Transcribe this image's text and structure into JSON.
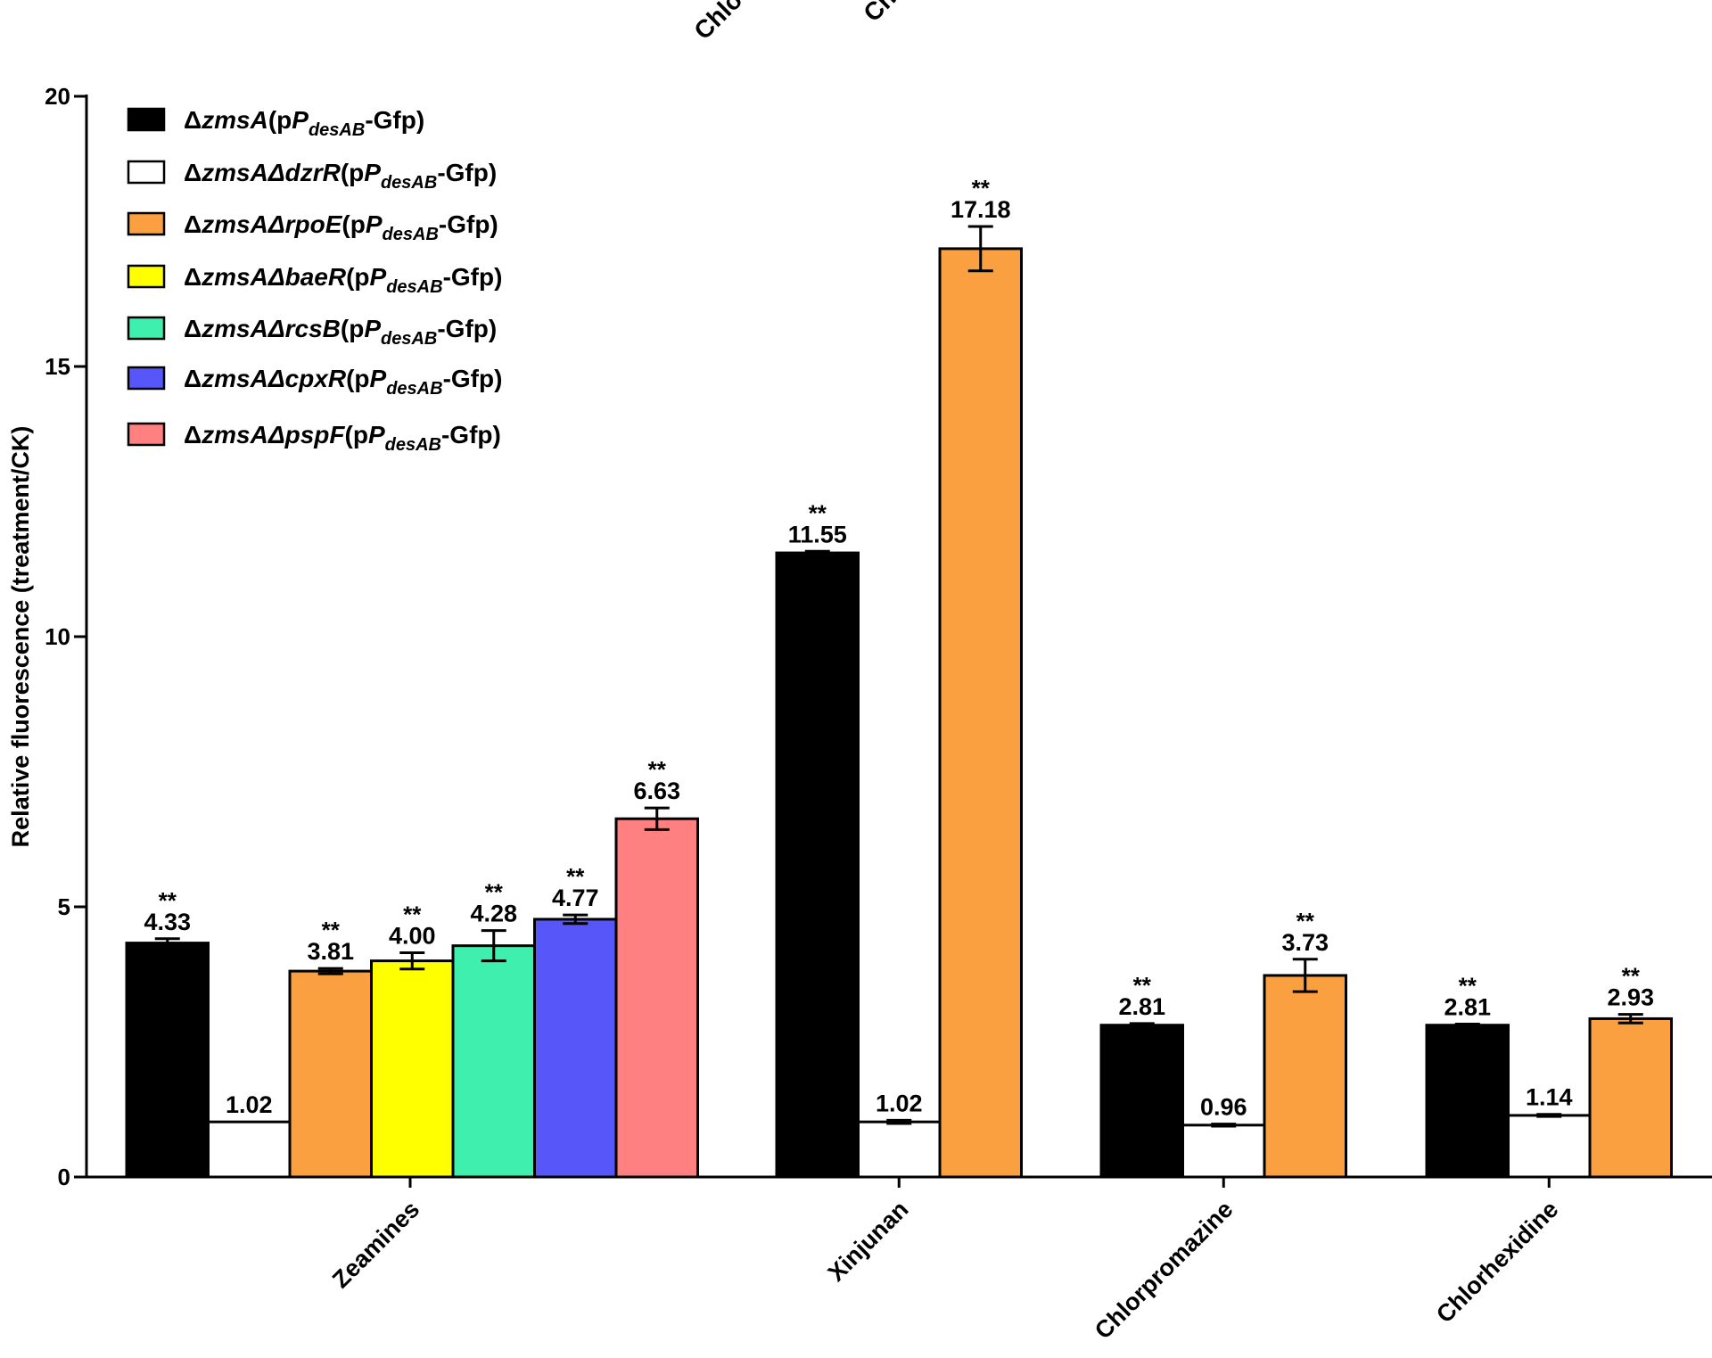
{
  "chart_data": {
    "type": "bar",
    "title": "",
    "xlabel": "",
    "ylabel": "Relative fluorescence (treatment/CK)",
    "ylim": [
      0,
      20
    ],
    "yticks": [
      "0",
      "5",
      "10",
      "15",
      "20"
    ],
    "grid": false,
    "legend_position": "top-left",
    "top_cropped_labels": [
      "Chlo",
      "Ch"
    ],
    "series": [
      {
        "name_prefix": "Δ",
        "name_gene": "zmsA",
        "name_suffix": "(p",
        "name_promoter": "P",
        "name_subscript": "desAB",
        "name_tail": "-Gfp)",
        "color": "#000000"
      },
      {
        "name_prefix": "Δ",
        "name_gene": "zmsAΔdzrR",
        "name_suffix": "(p",
        "name_promoter": "P",
        "name_subscript": "desAB",
        "name_tail": "-Gfp)",
        "color": "#ffffff"
      },
      {
        "name_prefix": "Δ",
        "name_gene": "zmsAΔrpoE",
        "name_suffix": "(p",
        "name_promoter": "P",
        "name_subscript": "desAB",
        "name_tail": "-Gfp)",
        "color": "#fba040"
      },
      {
        "name_prefix": "Δ",
        "name_gene": "zmsAΔbaeR",
        "name_suffix": "(p",
        "name_promoter": "P",
        "name_subscript": "desAB",
        "name_tail": "-Gfp)",
        "color": "#ffff00"
      },
      {
        "name_prefix": "Δ",
        "name_gene": "zmsAΔrcsB",
        "name_suffix": "(p",
        "name_promoter": "P",
        "name_subscript": "desAB",
        "name_tail": "-Gfp)",
        "color": "#3fefad"
      },
      {
        "name_prefix": "Δ",
        "name_gene": "zmsAΔcpxR",
        "name_suffix": "(p",
        "name_promoter": "P",
        "name_subscript": "desAB",
        "name_tail": "-Gfp)",
        "color": "#5757f9"
      },
      {
        "name_prefix": "Δ",
        "name_gene": "zmsAΔpspF",
        "name_suffix": "(p",
        "name_promoter": "P",
        "name_subscript": "desAB",
        "name_tail": "-Gfp)",
        "color": "#ff8080"
      }
    ],
    "groups": [
      {
        "category": "Zeamines",
        "bars": [
          {
            "series": 0,
            "value": 4.33,
            "error": 0.08,
            "label": "4.33",
            "sig": "**"
          },
          {
            "series": 1,
            "value": 1.02,
            "error": 0,
            "label": "1.02",
            "sig": ""
          },
          {
            "series": 2,
            "value": 3.81,
            "error": 0.05,
            "label": "3.81",
            "sig": "**"
          },
          {
            "series": 3,
            "value": 4.0,
            "error": 0.15,
            "label": "4.00",
            "sig": "**"
          },
          {
            "series": 4,
            "value": 4.28,
            "error": 0.28,
            "label": "4.28",
            "sig": "**"
          },
          {
            "series": 5,
            "value": 4.77,
            "error": 0.08,
            "label": "4.77",
            "sig": "**"
          },
          {
            "series": 6,
            "value": 6.63,
            "error": 0.2,
            "label": "6.63",
            "sig": "**"
          }
        ]
      },
      {
        "category": "Xinjunan",
        "bars": [
          {
            "series": 0,
            "value": 11.55,
            "error": 0.03,
            "label": "11.55",
            "sig": "**"
          },
          {
            "series": 1,
            "value": 1.02,
            "error": 0.03,
            "label": "1.02",
            "sig": ""
          },
          {
            "series": 2,
            "value": 17.18,
            "error": 0.41,
            "label": "17.18",
            "sig": "**"
          }
        ]
      },
      {
        "category": "Chlorpromazine",
        "bars": [
          {
            "series": 0,
            "value": 2.81,
            "error": 0.03,
            "label": "2.81",
            "sig": "**"
          },
          {
            "series": 1,
            "value": 0.96,
            "error": 0.02,
            "label": "0.96",
            "sig": ""
          },
          {
            "series": 2,
            "value": 3.73,
            "error": 0.3,
            "label": "3.73",
            "sig": "**"
          }
        ]
      },
      {
        "category": "Chlorhexidine",
        "bars": [
          {
            "series": 0,
            "value": 2.81,
            "error": 0.02,
            "label": "2.81",
            "sig": "**"
          },
          {
            "series": 1,
            "value": 1.14,
            "error": 0.02,
            "label": "1.14",
            "sig": ""
          },
          {
            "series": 2,
            "value": 2.93,
            "error": 0.08,
            "label": "2.93",
            "sig": "**"
          }
        ]
      }
    ]
  }
}
